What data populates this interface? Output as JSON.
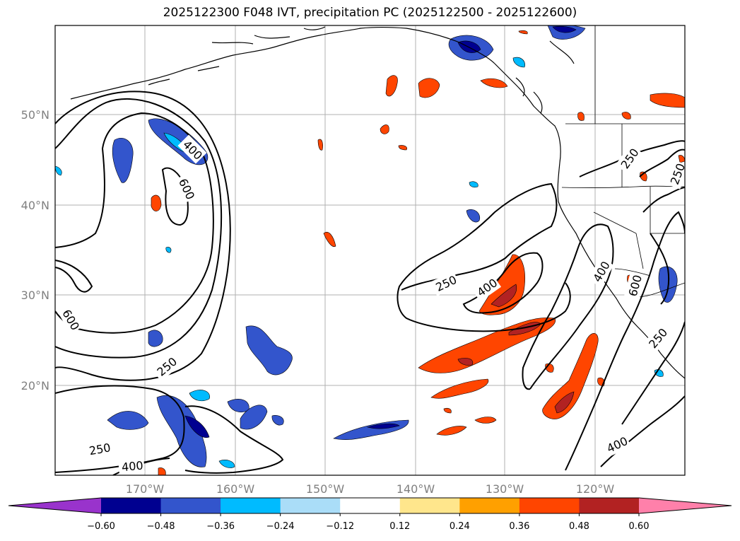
{
  "title": "2025122300 F048 IVT, precipitation PC (2025122500 - 2025122600)",
  "map": {
    "lat_labels": [
      "50°N",
      "40°N",
      "30°N",
      "20°N"
    ],
    "lon_labels": [
      "170°W",
      "160°W",
      "150°W",
      "140°W",
      "130°W",
      "120°W"
    ],
    "ivt_contour_levels": [
      250,
      400,
      600
    ],
    "contour_labels": [
      {
        "text": "400",
        "anchor": "left-north-cyclone"
      },
      {
        "text": "600",
        "anchor": "left-north-cyclone-inner"
      },
      {
        "text": "600",
        "anchor": "left-west"
      },
      {
        "text": "250",
        "anchor": "left-south"
      },
      {
        "text": "250",
        "anchor": "left-bottom"
      },
      {
        "text": "400",
        "anchor": "left-bottom-inner"
      },
      {
        "text": "250",
        "anchor": "east-plume"
      },
      {
        "text": "400",
        "anchor": "east-plume-inner"
      },
      {
        "text": "250",
        "anchor": "us-northwest"
      },
      {
        "text": "250",
        "anchor": "us-northeast"
      },
      {
        "text": "400",
        "anchor": "us-coast"
      },
      {
        "text": "600",
        "anchor": "us-coast-inner"
      },
      {
        "text": "250",
        "anchor": "us-south"
      },
      {
        "text": "400",
        "anchor": "bottom-right"
      }
    ]
  },
  "colorbar": {
    "tick_labels": [
      "−0.60",
      "−0.48",
      "−0.36",
      "−0.24",
      "−0.12",
      "0.12",
      "0.24",
      "0.36",
      "0.48",
      "0.60"
    ],
    "colors": [
      "#9933cc",
      "#000090",
      "#3355cc",
      "#00bbff",
      "#aaddf8",
      "#ffffff",
      "#ffe68c",
      "#ffa000",
      "#ff4500",
      "#b22222",
      "#ff80aa"
    ]
  }
}
